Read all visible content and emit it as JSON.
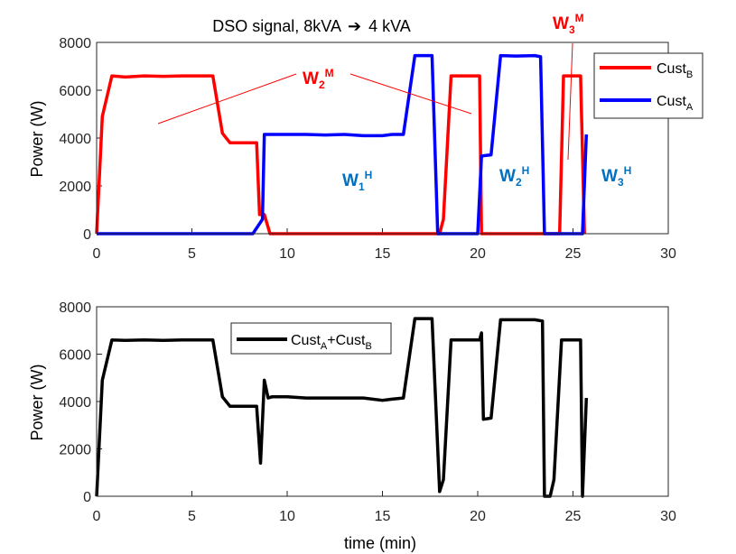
{
  "chart_data": [
    {
      "type": "line",
      "title": "DSO signal, 8kVA",
      "title_arrow": "➔",
      "title_suffix": "4 kVA",
      "xlabel": "",
      "ylabel": "Power (W)",
      "xlim": [
        0,
        30
      ],
      "ylim": [
        0,
        8000
      ],
      "xticks": [
        0,
        5,
        10,
        15,
        20,
        25,
        30
      ],
      "yticks": [
        0,
        2000,
        4000,
        6000,
        8000
      ],
      "grid": false,
      "legend_position": "top-right",
      "series": [
        {
          "name": "Cust",
          "name_sub": "B",
          "color": "#ff0000",
          "x": [
            0,
            0.3,
            0.8,
            1.5,
            2.5,
            3.5,
            4.5,
            5.5,
            6.1,
            6.6,
            7.0,
            8.4,
            8.55,
            8.8,
            9.1,
            10,
            18.0,
            18.2,
            18.6,
            20.1,
            20.2,
            23.5,
            24.3,
            24.5,
            25.4,
            25.6
          ],
          "y": [
            0,
            4900,
            6600,
            6550,
            6600,
            6580,
            6600,
            6600,
            6600,
            4200,
            3800,
            3800,
            800,
            800,
            0,
            0,
            0,
            600,
            6600,
            6600,
            0,
            0,
            0,
            6600,
            6600,
            0
          ]
        },
        {
          "name": "Cust",
          "name_sub": "A",
          "color": "#0000ff",
          "x": [
            0,
            8.2,
            8.7,
            8.8,
            9.5,
            11,
            12,
            13,
            14,
            15,
            15.5,
            16.1,
            16.7,
            17.6,
            17.9,
            18.5,
            20.0,
            20.2,
            20.7,
            21.2,
            22,
            23.0,
            23.3,
            23.5,
            25.5,
            25.7
          ],
          "y": [
            0,
            0,
            600,
            4150,
            4150,
            4150,
            4130,
            4150,
            4100,
            4100,
            4150,
            4150,
            7450,
            7450,
            0,
            0,
            0,
            3250,
            3300,
            7450,
            7430,
            7450,
            7400,
            0,
            0,
            4150
          ]
        }
      ],
      "annotations": [
        {
          "text": "W",
          "sub": "2",
          "sup": "M",
          "color": "#ff0000"
        },
        {
          "text": "W",
          "sub": "3",
          "sup": "M",
          "color": "#ff0000"
        },
        {
          "text": "W",
          "sub": "1",
          "sup": "H",
          "color": "#0070c0"
        },
        {
          "text": "W",
          "sub": "2",
          "sup": "H",
          "color": "#0070c0"
        },
        {
          "text": "W",
          "sub": "3",
          "sup": "H",
          "color": "#0070c0"
        }
      ]
    },
    {
      "type": "line",
      "title": "",
      "xlabel": "time (min)",
      "ylabel": "Power (W)",
      "xlim": [
        0,
        30
      ],
      "ylim": [
        0,
        8000
      ],
      "xticks": [
        0,
        5,
        10,
        15,
        20,
        25,
        30
      ],
      "yticks": [
        0,
        2000,
        4000,
        6000,
        8000
      ],
      "grid": false,
      "legend_position": "top-center",
      "series": [
        {
          "name": "Cust",
          "name_sub": "A",
          "name_mid": "+Cust",
          "name_sub2": "B",
          "color": "#000000",
          "x": [
            0,
            0.3,
            0.8,
            1.5,
            2.5,
            3.5,
            4.5,
            5.5,
            6.1,
            6.6,
            7.0,
            8.4,
            8.6,
            8.8,
            9.0,
            9.2,
            10,
            11,
            12,
            13,
            14,
            15,
            15.5,
            16.1,
            16.7,
            17.6,
            18.0,
            18.2,
            18.6,
            20.1,
            20.2,
            20.3,
            20.7,
            21.2,
            22,
            23.0,
            23.4,
            23.5,
            23.8,
            24.0,
            24.4,
            25.4,
            25.5,
            25.7
          ],
          "y": [
            0,
            4900,
            6600,
            6580,
            6600,
            6580,
            6600,
            6600,
            6600,
            4200,
            3800,
            3800,
            1400,
            4900,
            4150,
            4200,
            4200,
            4150,
            4150,
            4150,
            4150,
            4050,
            4100,
            4150,
            7500,
            7500,
            200,
            700,
            6600,
            6600,
            6900,
            3250,
            3300,
            7450,
            7450,
            7450,
            7400,
            0,
            0,
            700,
            6600,
            6600,
            0,
            4150
          ]
        }
      ]
    }
  ]
}
